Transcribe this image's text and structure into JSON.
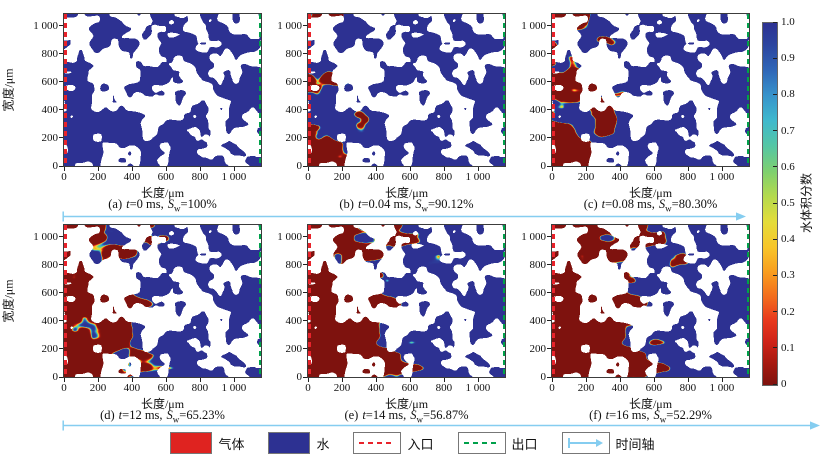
{
  "figure": {
    "symbols": {
      "t": "t",
      "S": "S",
      "w_sub": "w",
      "eq": "=",
      "comma": ","
    },
    "axes": {
      "x_label": "长度/μm",
      "y_label": "宽度/μm",
      "x_tick_labels": [
        "0",
        "200",
        "400",
        "600",
        "800",
        "1 000"
      ],
      "y_tick_labels": [
        "0",
        "200",
        "400",
        "600",
        "800",
        "1 000"
      ],
      "x_tick_values": [
        0,
        200,
        400,
        600,
        800,
        1000
      ],
      "y_tick_values": [
        0,
        200,
        400,
        600,
        800,
        1000
      ],
      "x_max": 1160,
      "y_max": 1085
    },
    "panels": [
      {
        "label": "(a)",
        "time": "0 ms",
        "sw": "100%"
      },
      {
        "label": "(b)",
        "time": "0.04 ms",
        "sw": "90.12%"
      },
      {
        "label": "(c)",
        "time": "0.08 ms",
        "sw": "80.30%"
      },
      {
        "label": "(d)",
        "time": "12 ms",
        "sw": "65.23%"
      },
      {
        "label": "(e)",
        "time": "14 ms",
        "sw": "56.87%"
      },
      {
        "label": "(f)",
        "time": "16 ms",
        "sw": "52.29%"
      }
    ],
    "colorbar": {
      "label": "水体积分数",
      "tick_labels": [
        "1.0",
        "0.9",
        "0.8",
        "0.7",
        "0.6",
        "0.5",
        "0.4",
        "0.3",
        "0.2",
        "0.1",
        "0"
      ]
    },
    "legend": [
      {
        "name": "gas",
        "label": "气体",
        "type": "fill",
        "color": "#df2320"
      },
      {
        "name": "water",
        "label": "水",
        "type": "fill",
        "color": "#2d3192"
      },
      {
        "name": "inlet",
        "label": "入口",
        "type": "dash",
        "color": "#e8232b"
      },
      {
        "name": "outlet",
        "label": "出口",
        "type": "dash",
        "color": "#00a14b"
      },
      {
        "name": "time-axis",
        "label": "时间轴",
        "type": "arrow",
        "color": "#85cdf0"
      }
    ],
    "colors": {
      "water": "#2d3192",
      "gas": "#df2320",
      "solid": "#ffffff",
      "inlet": "#e8232b",
      "outlet": "#00a14b",
      "time_axis": "#85cdf0"
    }
  },
  "chart_data": {
    "type": "heatmap",
    "title": "",
    "panels": [
      {
        "label": "(a)",
        "t_ms": 0,
        "Sw_percent": 100
      },
      {
        "label": "(b)",
        "t_ms": 0.04,
        "Sw_percent": 90.12
      },
      {
        "label": "(c)",
        "t_ms": 0.08,
        "Sw_percent": 80.3
      },
      {
        "label": "(d)",
        "t_ms": 12,
        "Sw_percent": 65.23
      },
      {
        "label": "(e)",
        "t_ms": 14,
        "Sw_percent": 56.87
      },
      {
        "label": "(f)",
        "t_ms": 16,
        "Sw_percent": 52.29
      }
    ],
    "xlabel": "长度/μm",
    "ylabel": "宽度/μm",
    "x_ticks": [
      0,
      200,
      400,
      600,
      800,
      1000
    ],
    "y_ticks": [
      0,
      200,
      400,
      600,
      800,
      1000
    ],
    "x_range_um": [
      0,
      1160
    ],
    "y_range_um": [
      0,
      1085
    ],
    "colorbar": {
      "label": "水体积分数",
      "min": 0,
      "max": 1,
      "ticks": [
        1.0,
        0.9,
        0.8,
        0.7,
        0.6,
        0.5,
        0.4,
        0.3,
        0.2,
        0.1,
        0
      ]
    },
    "colormap": "jet_reversed (1 = dark blue water, 0 = dark red gas; white = solid grains)",
    "legend": [
      "气体",
      "水",
      "入口",
      "出口",
      "时间轴"
    ]
  }
}
